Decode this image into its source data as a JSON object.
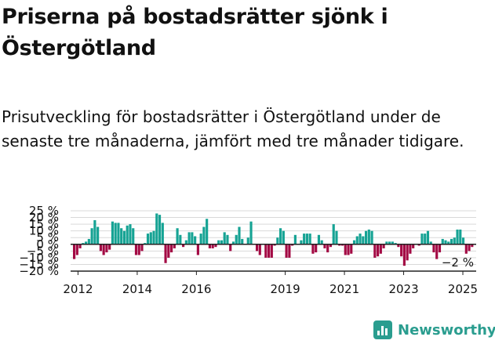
{
  "title": "Priserna på bostadsrätter sjönk i Östergötland",
  "subtitle": "Prisutveckling för bostadsrätter i Östergötland under de senaste tre månaderna, jämfört med tre månader tidigare.",
  "brand": {
    "name": "Newsworthy",
    "icon": "newsworthy-logo-icon"
  },
  "colors": {
    "positive": "#16a394",
    "negative": "#a30a44",
    "grid": "#d9d9d9",
    "axis": "#222222"
  },
  "chart_data": {
    "type": "bar",
    "ylim": [
      -20,
      25
    ],
    "yticks": [
      25,
      20,
      15,
      10,
      5,
      0,
      -5,
      -10,
      -15,
      -20
    ],
    "ytick_labels": [
      "25 %",
      "20 %",
      "15 %",
      "10 %",
      "5 %",
      "0 %",
      "−5 %",
      "−10 %",
      "−15 %",
      "−20 %"
    ],
    "x_start_year": 2011.75,
    "x_end_year": 2025.45,
    "xticks": [
      2012,
      2014,
      2016,
      2019,
      2021,
      2023,
      2025
    ],
    "xtick_labels": [
      "2012",
      "2014",
      "2016",
      "2019",
      "2021",
      "2023",
      "2025"
    ],
    "grid": true,
    "last_value_label": "−2 %",
    "values": [
      -11,
      -8,
      -3,
      1,
      2,
      4,
      12,
      18,
      13,
      -5,
      -8,
      -6,
      -4,
      17,
      16,
      16,
      12,
      10,
      14,
      15,
      12,
      -8,
      -8,
      -5,
      1,
      8,
      9,
      10,
      23,
      22,
      16,
      -14,
      -10,
      -6,
      -3,
      12,
      7,
      -2,
      3,
      9,
      9,
      6,
      -8,
      8,
      13,
      19,
      -3,
      -3,
      -2,
      3,
      3,
      9,
      7,
      -5,
      2,
      7,
      13,
      4,
      0,
      5,
      17,
      0,
      -5,
      -8,
      0,
      -10,
      -10,
      -10,
      -1,
      5,
      12,
      10,
      -10,
      -10,
      -1,
      7,
      0,
      3,
      8,
      8,
      8,
      -7,
      -6,
      7,
      3,
      -3,
      -6,
      -2,
      15,
      10,
      -1,
      -1,
      -8,
      -8,
      -7,
      3,
      6,
      8,
      6,
      10,
      11,
      10,
      -10,
      -9,
      -7,
      -3,
      2,
      2,
      2,
      1,
      -2,
      -9,
      -16,
      -12,
      -7,
      -3,
      0,
      -1,
      8,
      8,
      10,
      2,
      -6,
      -11,
      -6,
      4,
      3,
      2,
      4,
      5,
      11,
      11,
      5,
      -7,
      -5,
      -2
    ]
  }
}
